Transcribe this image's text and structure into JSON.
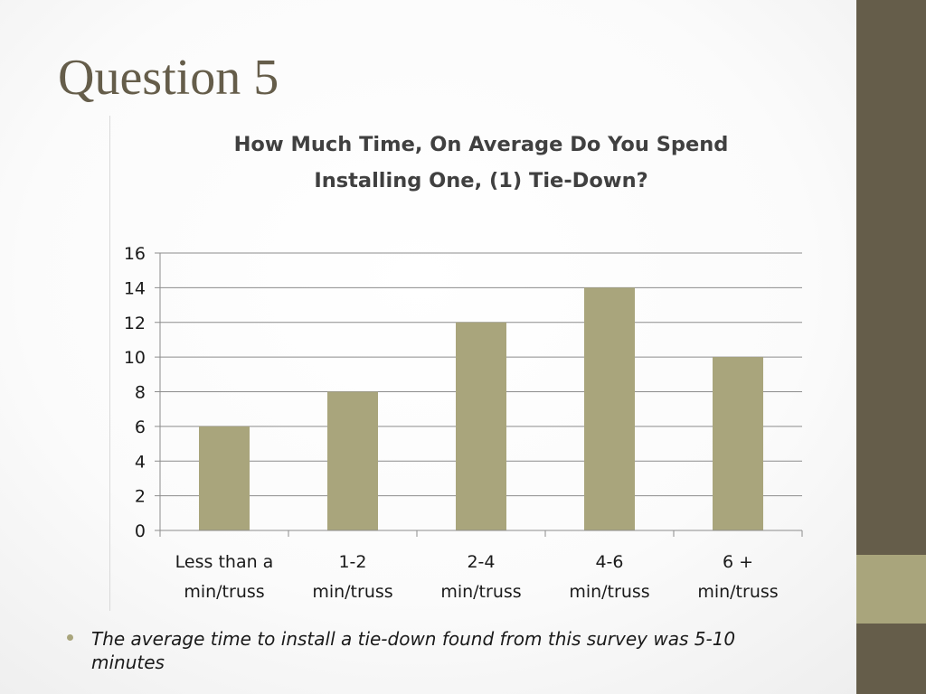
{
  "slide": {
    "title": "Question 5",
    "bullet": "The average time to install a tie-down found from this survey was 5-10 minutes"
  },
  "colors": {
    "bar": "#a9a57c",
    "sidebar_dark": "#655d4a",
    "sidebar_accent": "#a9a57c",
    "title": "#655d4a"
  },
  "chart_data": {
    "type": "bar",
    "title_lines": [
      "How Much Time, On Average Do You Spend",
      "Installing One, (1) Tie-Down?"
    ],
    "categories": [
      [
        "Less than a",
        "min/truss"
      ],
      [
        "1-2",
        "min/truss"
      ],
      [
        "2-4",
        "min/truss"
      ],
      [
        "4-6",
        "min/truss"
      ],
      [
        "6 +",
        "min/truss"
      ]
    ],
    "values": [
      6,
      8,
      12,
      14,
      10
    ],
    "ylim": [
      0,
      16
    ],
    "yticks": [
      0,
      2,
      4,
      6,
      8,
      10,
      12,
      14,
      16
    ],
    "grid": true,
    "legend": "none"
  }
}
